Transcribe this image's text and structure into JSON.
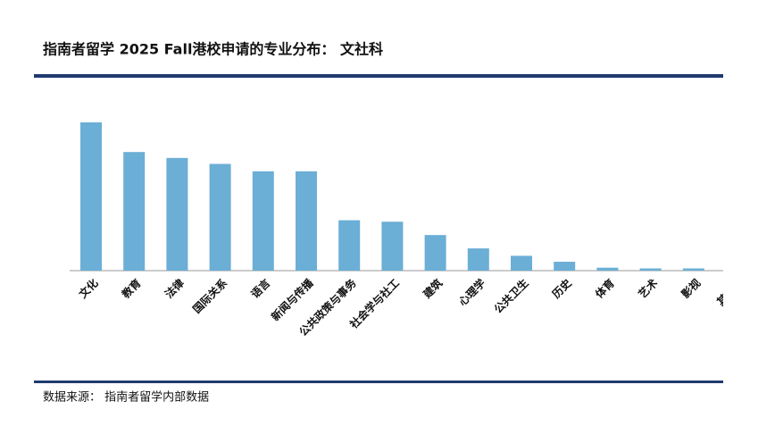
{
  "chart_data": {
    "type": "bar",
    "title": "指南者留学 2025 Fall港校申请的专业分布： 文社科",
    "source": "数据来源： 指南者留学内部数据",
    "categories": [
      "文化",
      "教育",
      "法律",
      "国际关系",
      "语言",
      "新闻与传播",
      "公共政策与事务",
      "社会学与社工",
      "建筑",
      "心理学",
      "公共卫生",
      "历史",
      "体育",
      "艺术",
      "影视",
      "其他科"
    ],
    "values": [
      100,
      80,
      76,
      72,
      67,
      67,
      34,
      33,
      24,
      15,
      10,
      6,
      2,
      1.5,
      1.5,
      null
    ],
    "color": "#6baed6"
  }
}
